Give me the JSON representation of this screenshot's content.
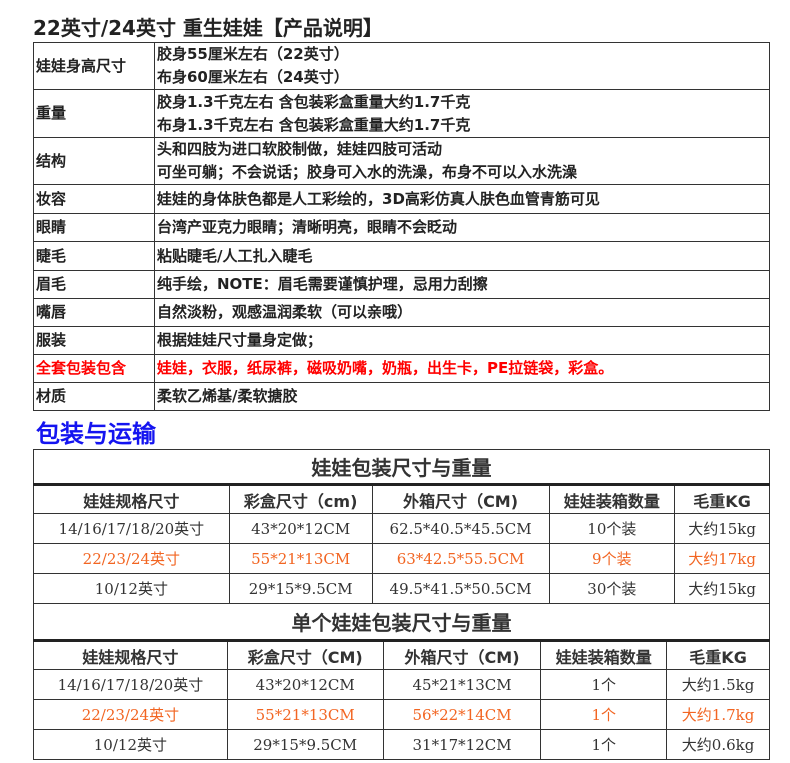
{
  "title": "22英寸/24英寸 重生娃娃【产品说明】",
  "spec": [
    {
      "label": "娃娃身高尺寸",
      "lines": [
        "胶身55厘米左右（22英寸）",
        "布身60厘米左右（24英寸）"
      ]
    },
    {
      "label": "重量",
      "lines": [
        "胶身1.3千克左右 含包装彩盒重量大约1.7千克",
        "布身1.3千克左右 含包装彩盒重量大约1.7千克"
      ]
    },
    {
      "label": "结构",
      "lines": [
        "头和四肢为进口软胶制做，娃娃四肢可活动",
        "可坐可躺；不会说话；胶身可入水的洗澡，布身不可以入水洗澡"
      ]
    },
    {
      "label": "妆容",
      "lines": [
        "娃娃的身体肤色都是人工彩绘的，3D高彩仿真人肤色血管青筋可见"
      ]
    },
    {
      "label": "眼睛",
      "lines": [
        "台湾产亚克力眼睛；清晰明亮，眼睛不会眨动"
      ]
    },
    {
      "label": "睫毛",
      "lines": [
        "粘贴睫毛/人工扎入睫毛"
      ]
    },
    {
      "label": "眉毛",
      "lines": [
        "纯手绘，NOTE：眉毛需要谨慎护理，忌用力刮擦"
      ]
    },
    {
      "label": "嘴唇",
      "lines": [
        "自然淡粉，观感温润柔软（可以亲哦）"
      ]
    },
    {
      "label": "服装",
      "lines": [
        "根据娃娃尺寸量身定做；"
      ]
    },
    {
      "label": "全套包装包含",
      "lines": [
        " 娃娃，衣服，纸尿裤，磁吸奶嘴，奶瓶，出生卡，PE拉链袋，彩盒。"
      ],
      "highlight": true
    },
    {
      "label": "材质",
      "lines": [
        "柔软乙烯基/柔软搪胶"
      ]
    }
  ],
  "shipping_heading": "包装与运输",
  "colors": {
    "highlight_red": "#ff0000",
    "highlight_orange": "#f26522",
    "heading_blue": "#1414f0"
  },
  "pack_tables": [
    {
      "caption": "娃娃包装尺寸与重量",
      "headers": [
        "娃娃规格尺寸",
        "彩盒尺寸（cm)",
        "外箱尺寸（CM)",
        "娃娃装箱数量",
        "毛重KG"
      ],
      "rows": [
        [
          "14/16/17/18/20英寸",
          "43*20*12CM",
          "62.5*40.5*45.5CM",
          "10个装",
          "大约15kg"
        ],
        [
          "22/23/24英寸",
          "55*21*13CM",
          "63*42.5*55.5CM",
          "9个装",
          "大约17kg"
        ],
        [
          "10/12英寸",
          "29*15*9.5CM",
          "49.5*41.5*50.5CM",
          "30个装",
          "大约15kg"
        ]
      ]
    },
    {
      "caption": "单个娃娃包装尺寸与重量",
      "headers": [
        "娃娃规格尺寸",
        "彩盒尺寸（CM)",
        "外箱尺寸（CM)",
        "娃娃装箱数量",
        "毛重KG"
      ],
      "rows": [
        [
          "14/16/17/18/20英寸",
          "43*20*12CM",
          "45*21*13CM",
          "1个",
          "大约1.5kg"
        ],
        [
          "22/23/24英寸",
          "55*21*13CM",
          "56*22*14CM",
          "1个",
          "大约1.7kg"
        ],
        [
          "10/12英寸",
          "29*15*9.5CM",
          "31*17*12CM",
          "1个",
          "大约0.6kg"
        ]
      ]
    }
  ]
}
